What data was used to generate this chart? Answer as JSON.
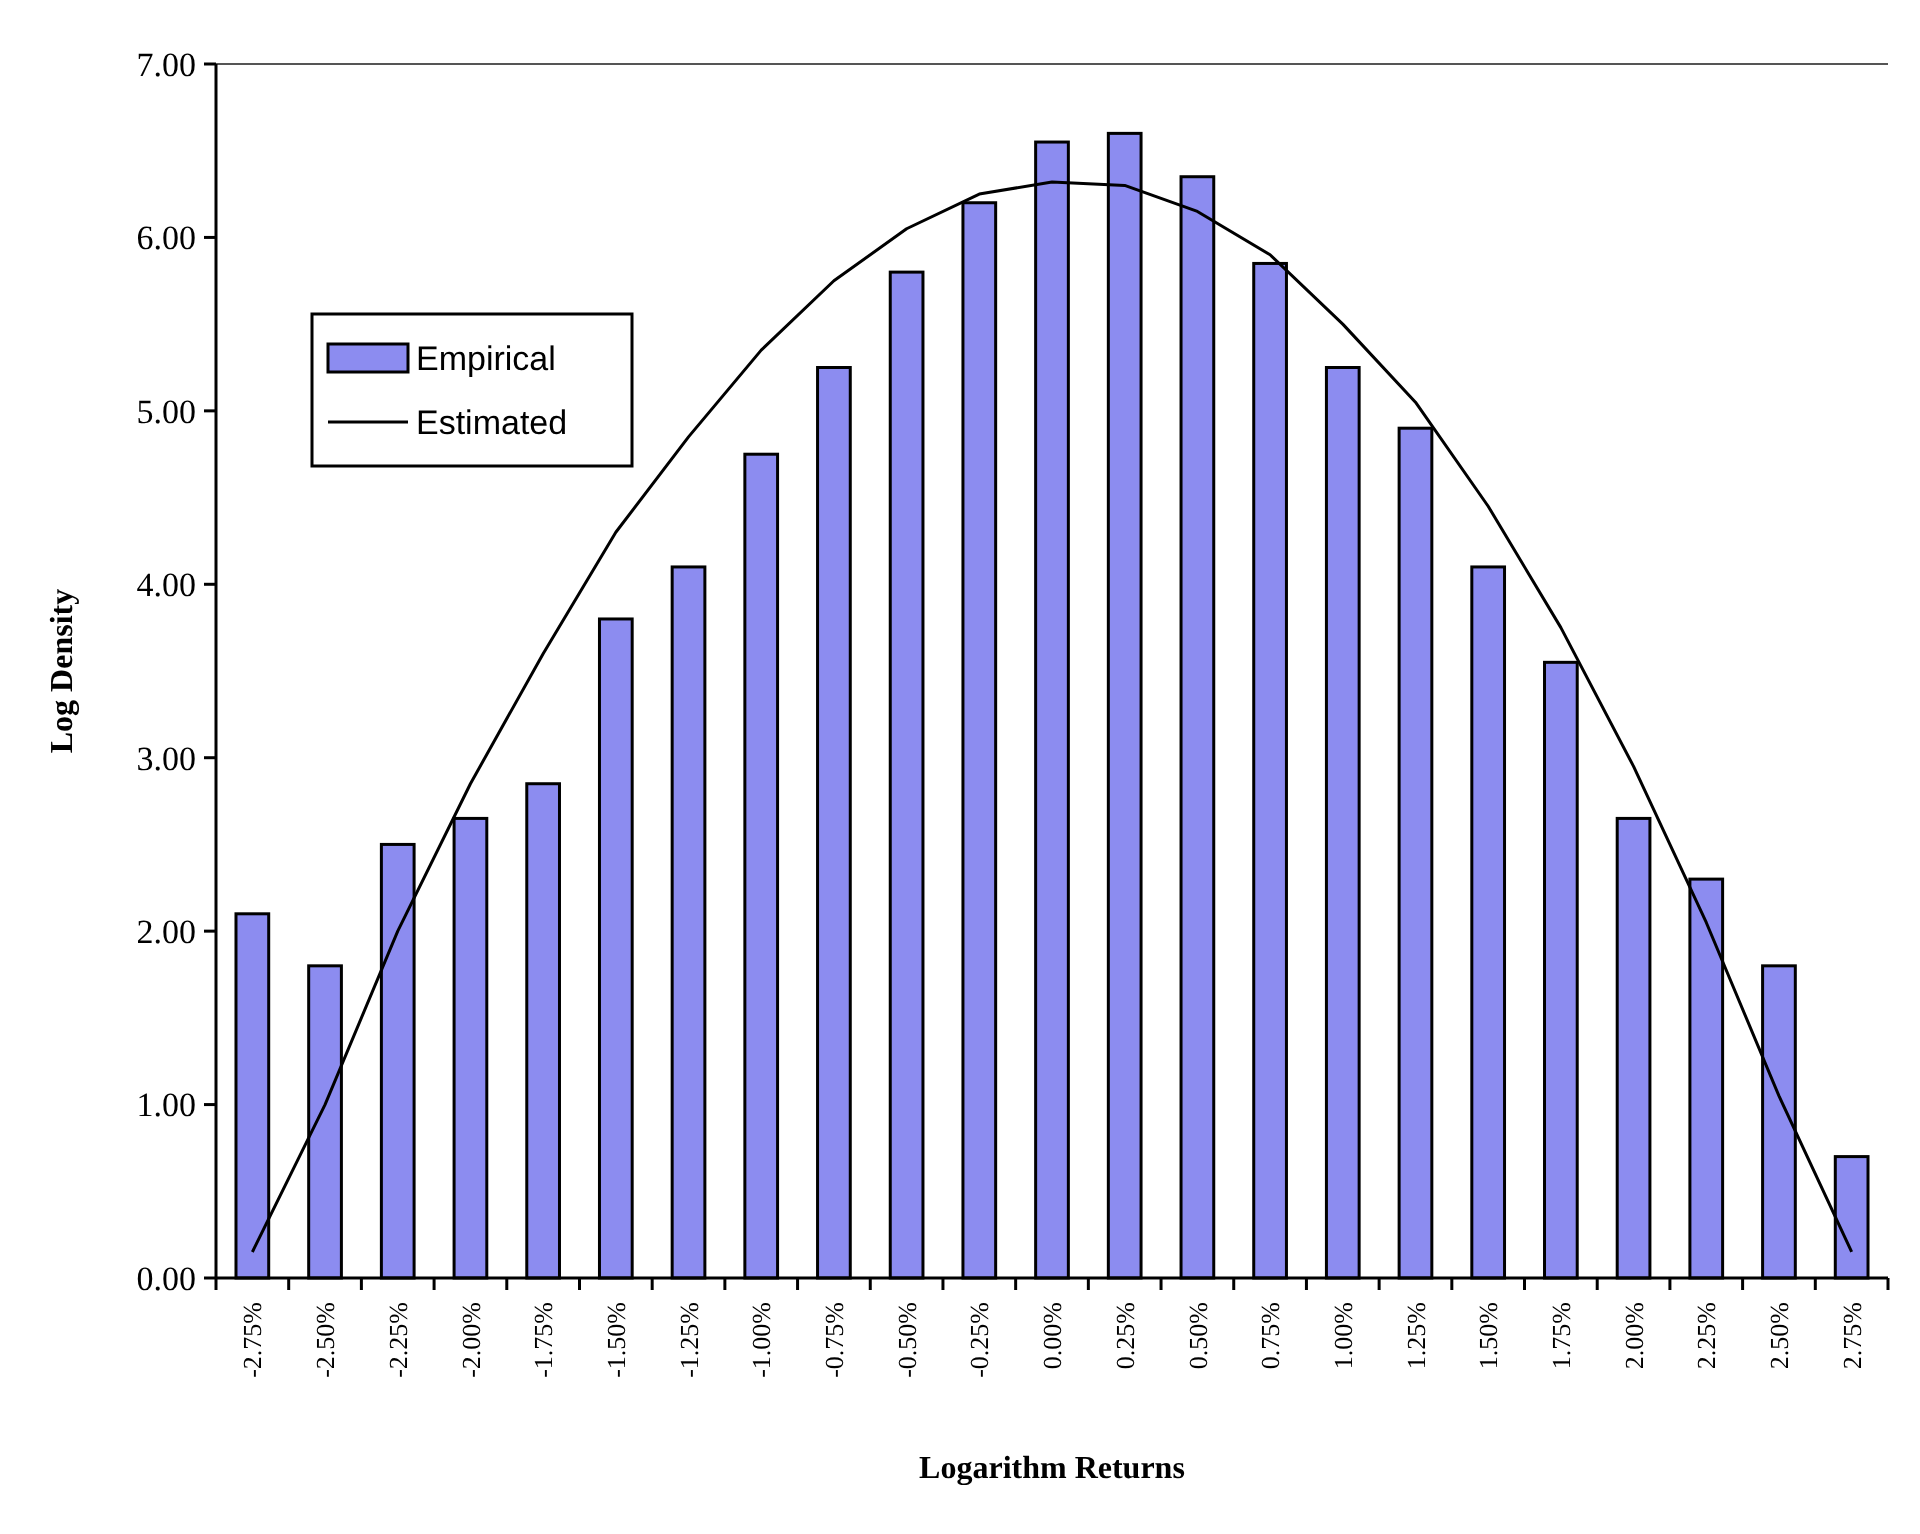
{
  "chart_data": {
    "type": "bar",
    "xlabel": "Logarithm Returns",
    "ylabel": "Log Density",
    "categories": [
      "-2.75%",
      "-2.50%",
      "-2.25%",
      "-2.00%",
      "-1.75%",
      "-1.50%",
      "-1.25%",
      "-1.00%",
      "-0.75%",
      "-0.50%",
      "-0.25%",
      "0.00%",
      "0.25%",
      "0.50%",
      "0.75%",
      "1.00%",
      "1.25%",
      "1.50%",
      "1.75%",
      "2.00%",
      "2.25%",
      "2.50%",
      "2.75%"
    ],
    "series": [
      {
        "name": "Empirical",
        "color": "#8c8cf0",
        "values": [
          2.1,
          1.8,
          2.5,
          2.65,
          2.85,
          3.8,
          4.1,
          4.75,
          5.25,
          5.8,
          6.2,
          6.55,
          6.6,
          6.35,
          5.85,
          5.25,
          4.9,
          4.1,
          3.55,
          2.65,
          2.3,
          1.8,
          0.7
        ]
      },
      {
        "name": "Estimated",
        "type": "line",
        "color": "#000000",
        "values": [
          0.15,
          1.0,
          2.0,
          2.85,
          3.6,
          4.3,
          4.85,
          5.35,
          5.75,
          6.05,
          6.25,
          6.32,
          6.3,
          6.15,
          5.9,
          5.5,
          5.05,
          4.45,
          3.75,
          2.95,
          2.05,
          1.05,
          0.15
        ]
      }
    ],
    "ylim": [
      0,
      7
    ],
    "yticks": [
      {
        "value": 0,
        "label": "0.00"
      },
      {
        "value": 1,
        "label": "1.00"
      },
      {
        "value": 2,
        "label": "2.00"
      },
      {
        "value": 3,
        "label": "3.00"
      },
      {
        "value": 4,
        "label": "4.00"
      },
      {
        "value": 5,
        "label": "5.00"
      },
      {
        "value": 6,
        "label": "6.00"
      },
      {
        "value": 7,
        "label": "7.00"
      }
    ],
    "grid": false,
    "legend": "top left",
    "marker": "none",
    "line_style": "solid"
  }
}
